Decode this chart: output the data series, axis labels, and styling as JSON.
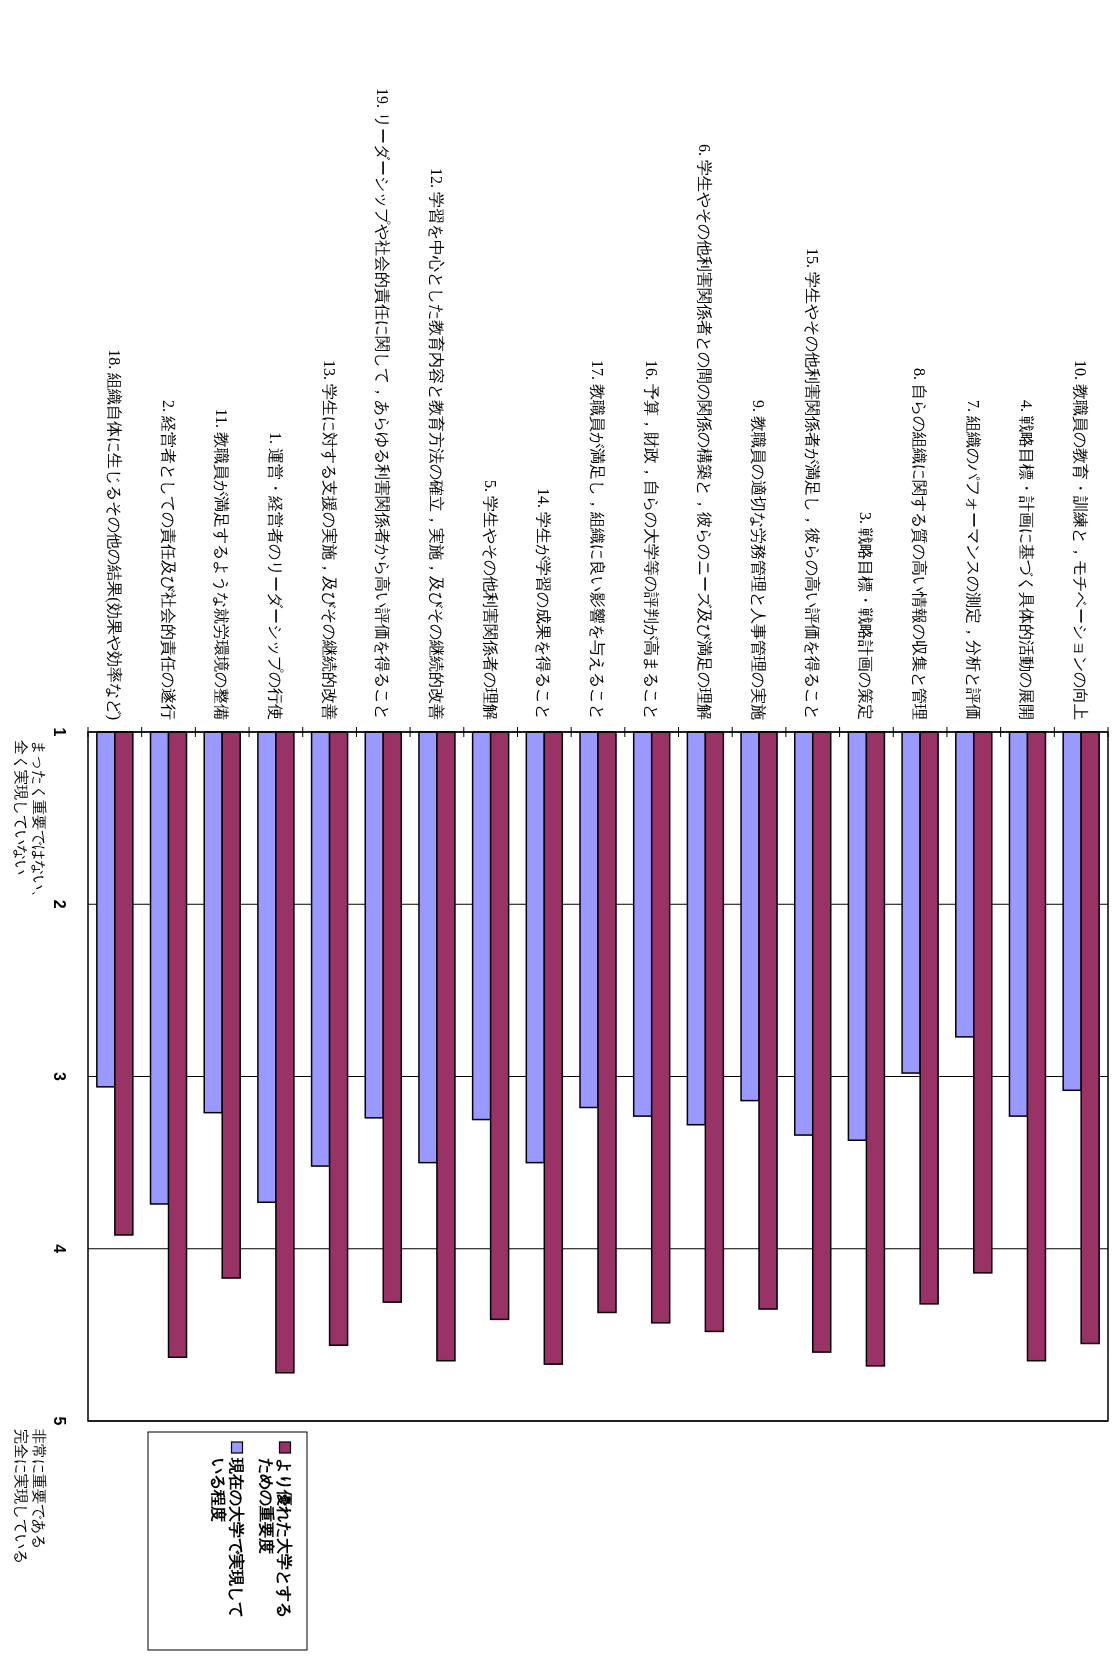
{
  "chart_data": {
    "type": "bar",
    "categories": [
      "18. 組織自体に生じるその他の結果(効果や効率など)",
      "2. 経営者としての責任及び社会的責任の遂行",
      "11. 教職員が満足するような就労環境の整備",
      "1. 運営・経営者のリーダーシップの行使",
      "13. 学生に対する支援の実施，及びその継続的改善",
      "19. リーダーシップや社会的責任に関して，あらゆる利害関係者から高い評価を得ること",
      "12. 学習を中心とした教育内容と教育方法の確立，実施，及びその継続的改善",
      "5. 学生やその他利害関係者の理解",
      "14. 学生が学習の成果を得ること",
      "17. 教職員が満足し，組織に良い影響を与えること",
      "16. 予算，財政，自らの大学等の評判が高まること",
      "6. 学生やその他利害関係者との間の関係の構築と，彼らのニーズ及び満足の理解",
      "9. 教職員の適切な労務管理と人事管理の実施",
      "15. 学生やその他利害関係者が満足し，彼らの高い評価を得ること",
      "3. 戦略目標・戦略計画の策定",
      "8. 自らの組織に関する質の高い情報の収集と管理",
      "7. 組織のパフォーマンスの測定，分析と評価",
      "4. 戦略目標・計画に基づく具体的活動の展開",
      "10. 教職員の教育・訓練と，モチベーションの向上"
    ],
    "series": [
      {
        "name": "現在の大学で実現している程度",
        "color": "#9999ff",
        "values": [
          3.06,
          3.74,
          3.21,
          3.73,
          3.52,
          3.24,
          3.5,
          3.25,
          3.5,
          3.18,
          3.23,
          3.28,
          3.14,
          3.34,
          3.37,
          2.98,
          2.77,
          3.23,
          3.08
        ]
      },
      {
        "name": "より優れた大学とするための重要度",
        "color": "#993366",
        "values": [
          3.92,
          4.63,
          4.17,
          4.72,
          4.56,
          4.31,
          4.65,
          4.41,
          4.67,
          4.37,
          4.43,
          4.48,
          4.35,
          4.6,
          4.68,
          4.32,
          4.14,
          4.65,
          4.55
        ]
      }
    ],
    "ylim": [
      5,
      1
    ],
    "yticks": [
      1,
      2,
      3,
      4,
      5
    ],
    "grid": "y",
    "legend": "bottom left",
    "annotations": [
      "まったく重要ではない、",
      "全く実現していない",
      "非常に重要である",
      "完全に実現している"
    ]
  }
}
